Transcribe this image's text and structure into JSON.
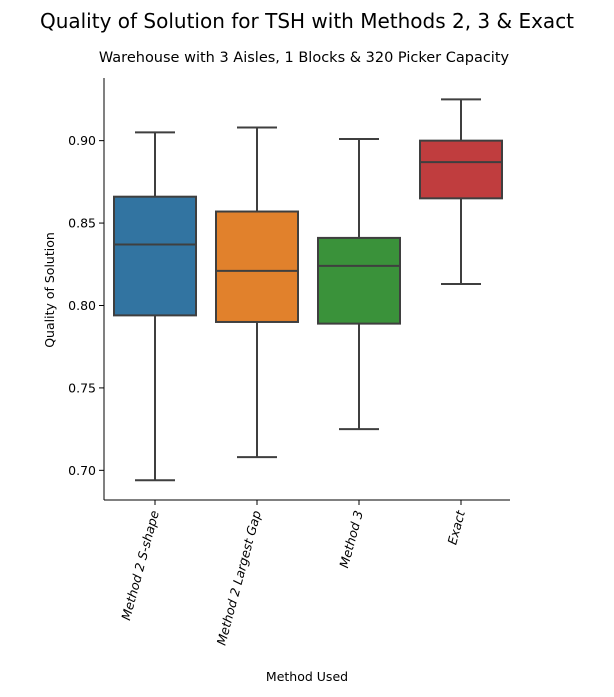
{
  "chart_data": {
    "type": "box",
    "title": "Quality of Solution for TSH with Methods 2, 3 & Exact",
    "subtitle": "Warehouse with 3 Aisles, 1 Blocks & 320 Picker Capacity",
    "xlabel": "Method Used",
    "ylabel": "Quality of Solution",
    "ylim": [
      0.682,
      0.938
    ],
    "yticks": [
      0.7,
      0.75,
      0.8,
      0.85,
      0.9
    ],
    "ytick_labels": [
      "0.70",
      "0.75",
      "0.80",
      "0.85",
      "0.90"
    ],
    "grid": false,
    "legend": "none",
    "categories": [
      "Method 2 S-shape",
      "Method 2 Largest Gap",
      "Method 3",
      "Exact"
    ],
    "boxes": [
      {
        "category": "Method 2 S-shape",
        "whisker_low": 0.694,
        "q1": 0.794,
        "median": 0.837,
        "q3": 0.866,
        "whisker_high": 0.905,
        "color": "#3274a1"
      },
      {
        "category": "Method 2 Largest Gap",
        "whisker_low": 0.708,
        "q1": 0.79,
        "median": 0.821,
        "q3": 0.857,
        "whisker_high": 0.908,
        "color": "#e1812c"
      },
      {
        "category": "Method 3",
        "whisker_low": 0.725,
        "q1": 0.789,
        "median": 0.824,
        "q3": 0.841,
        "whisker_high": 0.901,
        "color": "#3a923a"
      },
      {
        "category": "Exact",
        "whisker_low": 0.813,
        "q1": 0.865,
        "median": 0.887,
        "q3": 0.9,
        "whisker_high": 0.925,
        "color": "#c03d3e"
      }
    ],
    "line_color": "#3f3f3f"
  }
}
